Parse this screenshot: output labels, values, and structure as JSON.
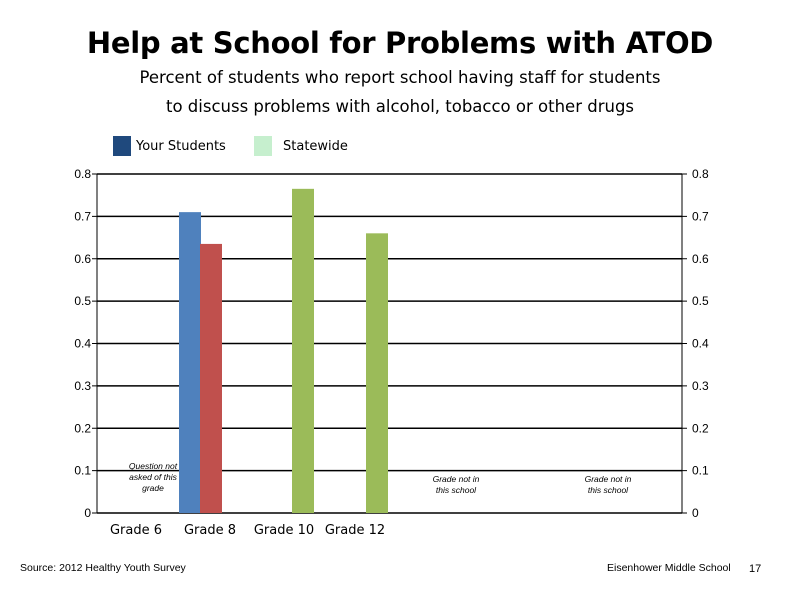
{
  "title": "Help at School for Problems with ATOD",
  "subtitle_line1": "Percent of students who report school having staff for students",
  "subtitle_line2": "to discuss problems with alcohol, tobacco or other drugs",
  "legend": [
    {
      "label": "Your Students",
      "color": "#1F497D"
    },
    {
      "label": "Statewide",
      "color": "#C6EFCE"
    }
  ],
  "chart_data": {
    "type": "bar",
    "categories": [
      "Grade 6",
      "Grade 8",
      "Grade 10",
      "Grade 12"
    ],
    "series": [
      {
        "name": "Your Students",
        "values": [
          null,
          0.71,
          null,
          null
        ]
      },
      {
        "name": "Statewide",
        "values": [
          null,
          0.635,
          null,
          null
        ]
      },
      {
        "values": [
          null,
          null,
          0.765,
          0.66
        ]
      }
    ],
    "series_colors": [
      "#4F81BD",
      "#C0504D",
      "#9BBB59"
    ],
    "ylim": [
      0,
      0.8
    ],
    "y_ticks": [
      "0",
      "0.1",
      "0.2",
      "0.3",
      "0.4",
      "0.5",
      "0.6",
      "0.7",
      "0.8"
    ],
    "secondary_y_ticks": [
      "0",
      "0.1",
      "0.2",
      "0.3",
      "0.4",
      "0.5",
      "0.6",
      "0.7",
      "0.8"
    ],
    "grid": true,
    "annotations": [
      {
        "category": "Grade 6",
        "lines": [
          "Question not",
          "asked of this",
          "grade"
        ]
      },
      {
        "category": "Grade 12",
        "lines": [
          "Grade not in",
          "this school"
        ],
        "slot": "after-1"
      },
      {
        "category": "Grade 12",
        "lines": [
          "Grade not in",
          "this school"
        ],
        "slot": "after-2"
      }
    ]
  },
  "footer": {
    "source": "Source: 2012 Healthy Youth Survey",
    "school": "Eisenhower Middle School",
    "page": "17"
  }
}
